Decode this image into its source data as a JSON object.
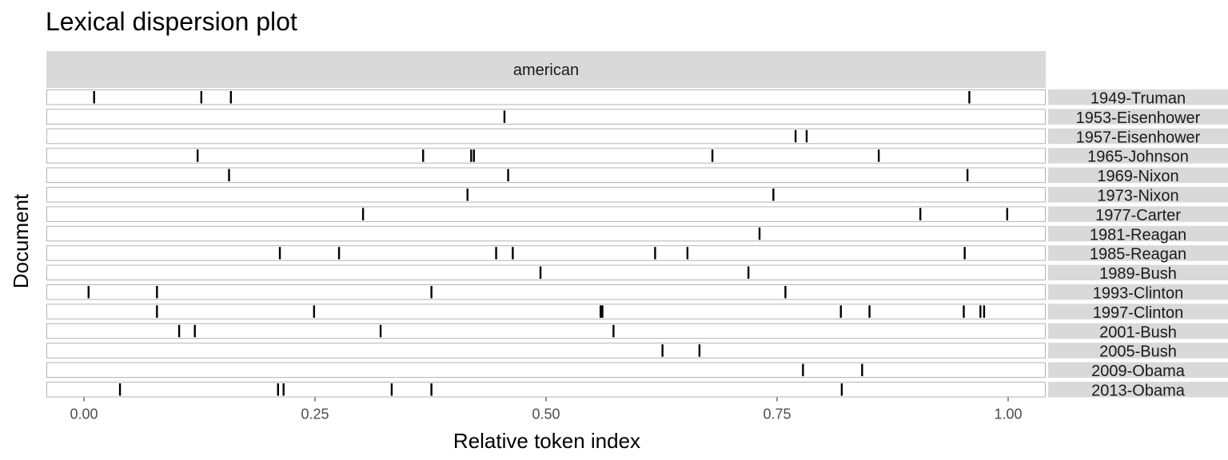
{
  "chart_data": {
    "type": "lexical-dispersion",
    "title": "Lexical dispersion plot",
    "xlabel": "Relative token index",
    "ylabel": "Document",
    "facet_label": "american",
    "xlim": [
      0.0,
      1.0
    ],
    "x_ticks": [
      "0.00",
      "0.25",
      "0.50",
      "0.75",
      "1.00"
    ],
    "x_tick_values": [
      0.0,
      0.25,
      0.5,
      0.75,
      1.0
    ],
    "grid": false,
    "documents": [
      {
        "name": "1949-Truman",
        "positions": [
          0.011,
          0.127,
          0.159,
          0.958
        ]
      },
      {
        "name": "1953-Eisenhower",
        "positions": [
          0.455
        ]
      },
      {
        "name": "1957-Eisenhower",
        "positions": [
          0.77,
          0.782
        ]
      },
      {
        "name": "1965-Johnson",
        "positions": [
          0.123,
          0.367,
          0.419,
          0.422,
          0.68,
          0.86
        ]
      },
      {
        "name": "1969-Nixon",
        "positions": [
          0.157,
          0.459,
          0.956
        ]
      },
      {
        "name": "1973-Nixon",
        "positions": [
          0.415,
          0.746
        ]
      },
      {
        "name": "1977-Carter",
        "positions": [
          0.302,
          0.905,
          0.999
        ]
      },
      {
        "name": "1981-Reagan",
        "positions": [
          0.731
        ]
      },
      {
        "name": "1985-Reagan",
        "positions": [
          0.212,
          0.276,
          0.446,
          0.464,
          0.618,
          0.653,
          0.953
        ]
      },
      {
        "name": "1989-Bush",
        "positions": [
          0.494,
          0.719
        ]
      },
      {
        "name": "1993-Clinton",
        "positions": [
          0.005,
          0.079,
          0.376,
          0.759
        ]
      },
      {
        "name": "1997-Clinton",
        "positions": [
          0.079,
          0.249,
          0.559,
          0.561,
          0.819,
          0.85,
          0.952,
          0.97,
          0.974
        ]
      },
      {
        "name": "2001-Bush",
        "positions": [
          0.103,
          0.12,
          0.321,
          0.573
        ]
      },
      {
        "name": "2005-Bush",
        "positions": [
          0.626,
          0.666
        ]
      },
      {
        "name": "2009-Obama",
        "positions": [
          0.778,
          0.842
        ]
      },
      {
        "name": "2013-Obama",
        "positions": [
          0.039,
          0.21,
          0.216,
          0.333,
          0.376,
          0.82
        ]
      }
    ]
  }
}
